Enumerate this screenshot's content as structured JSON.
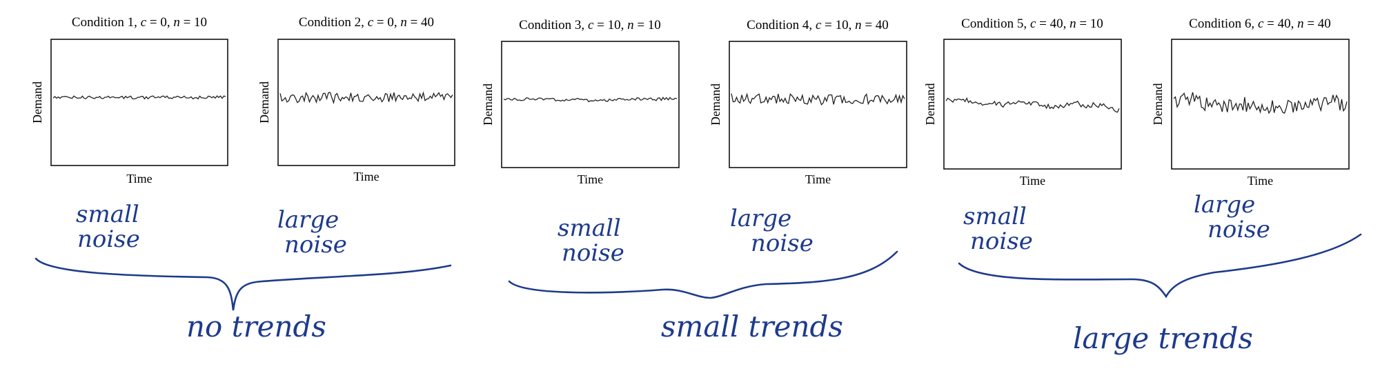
{
  "chart_data": [
    {
      "type": "line",
      "title": "Condition 1, c = 0, n = 10",
      "c": 0,
      "n": 10,
      "xlabel": "Time",
      "ylabel": "Demand",
      "grid": false,
      "tick_labels": false,
      "note": "small noise"
    },
    {
      "type": "line",
      "title": "Condition 2, c = 0, n = 40",
      "c": 0,
      "n": 40,
      "xlabel": "Time",
      "ylabel": "Demand",
      "grid": false,
      "tick_labels": false,
      "note": "large noise"
    },
    {
      "type": "line",
      "title": "Condition 3, c = 10, n = 10",
      "c": 10,
      "n": 10,
      "xlabel": "Time",
      "ylabel": "Demand",
      "grid": false,
      "tick_labels": false,
      "note": "small noise"
    },
    {
      "type": "line",
      "title": "Condition 4, c = 10, n = 40",
      "c": 10,
      "n": 40,
      "xlabel": "Time",
      "ylabel": "Demand",
      "grid": false,
      "tick_labels": false,
      "note": "large noise"
    },
    {
      "type": "line",
      "title": "Condition 5, c = 40, n = 10",
      "c": 40,
      "n": 10,
      "xlabel": "Time",
      "ylabel": "Demand",
      "grid": false,
      "tick_labels": false,
      "note": "small noise"
    },
    {
      "type": "line",
      "title": "Condition 6, c = 40, n = 40",
      "c": 40,
      "n": 40,
      "xlabel": "Time",
      "ylabel": "Demand",
      "grid": false,
      "tick_labels": false,
      "note": "large noise"
    }
  ],
  "annotations": {
    "handwritten_color": "#1d3a8c",
    "groups": [
      "no trends",
      "small trends",
      "large trends"
    ]
  }
}
